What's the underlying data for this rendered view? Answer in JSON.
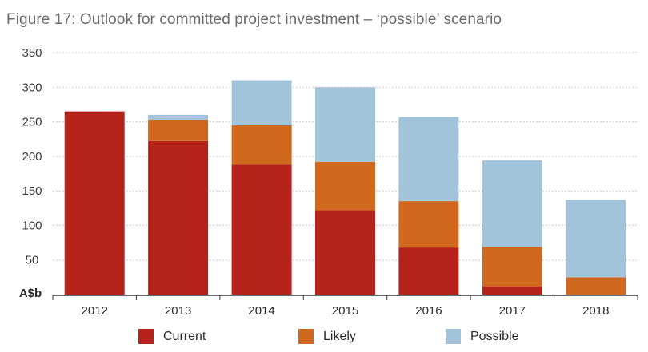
{
  "chart_data": {
    "type": "bar",
    "stacked": true,
    "title": "Figure 17: Outlook for committed project investment – ‘possible’ scenario",
    "ylabel": "A$b",
    "xlabel": "",
    "ylim": [
      0,
      350
    ],
    "yticks": [
      50,
      100,
      150,
      200,
      250,
      300,
      350
    ],
    "grid": true,
    "legend_position": "bottom",
    "categories": [
      "2012",
      "2013",
      "2014",
      "2015",
      "2016",
      "2017",
      "2018"
    ],
    "series": [
      {
        "name": "Current",
        "color": "#b5231a",
        "values": [
          265,
          222,
          188,
          122,
          68,
          12,
          0
        ]
      },
      {
        "name": "Likely",
        "color": "#d0691d",
        "values": [
          0,
          31,
          57,
          70,
          67,
          57,
          25
        ]
      },
      {
        "name": "Possible",
        "color": "#a2c4da",
        "values": [
          0,
          7,
          65,
          108,
          122,
          125,
          112
        ]
      }
    ]
  }
}
